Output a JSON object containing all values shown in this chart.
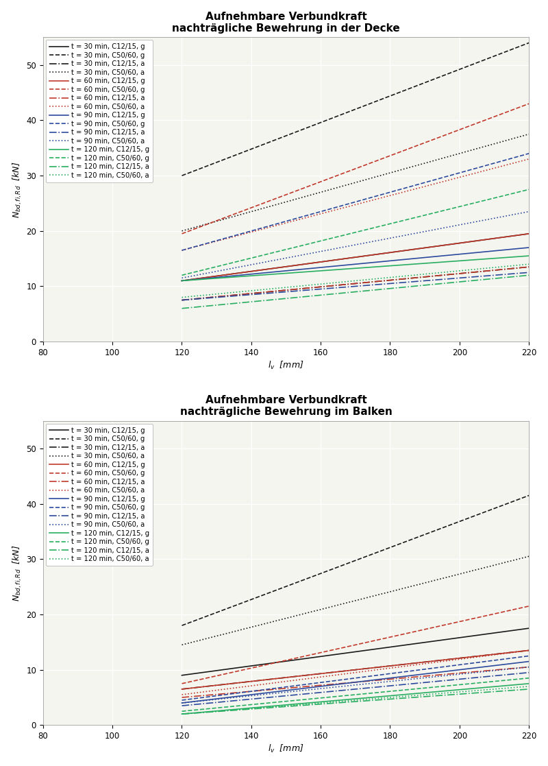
{
  "title1": "Aufnehmbare Verbundkraft\nnachträgliche Bewehrung in der Decke",
  "title2": "Aufnehmbare Verbundkraft\nnachträgliche Bewehrung im Balken",
  "xlabel": "$l_v$  [mm]",
  "ylabel1": "$N_{bd,fi,Rd}$  [kN]",
  "ylabel2": "$N_{bd,fi,Rd}$  [kN]",
  "xlim": [
    80,
    220
  ],
  "ylim": [
    0,
    55
  ],
  "yticks": [
    0,
    10,
    20,
    30,
    40,
    50
  ],
  "xticks": [
    80,
    100,
    120,
    140,
    160,
    180,
    200,
    220
  ],
  "x_start": 120,
  "x_end": 220,
  "legend_entries": [
    {
      "label": "t = 30 min, C12/15, g",
      "color": "#1a1a1a",
      "ls": "solid"
    },
    {
      "label": "t = 30 min, C50/60, g",
      "color": "#1a1a1a",
      "ls": "dashed"
    },
    {
      "label": "t = 30 min, C12/15, a",
      "color": "#1a1a1a",
      "ls": "dashdot"
    },
    {
      "label": "t = 30 min, C50/60, a",
      "color": "#1a1a1a",
      "ls": "dotted"
    },
    {
      "label": "t = 60 min, C12/15, g",
      "color": "#c0392b",
      "ls": "solid"
    },
    {
      "label": "t = 60 min, C50/60, g",
      "color": "#c0392b",
      "ls": "dashed"
    },
    {
      "label": "t = 60 min, C12/15, a",
      "color": "#c0392b",
      "ls": "dashdot"
    },
    {
      "label": "t = 60 min, C50/60, a",
      "color": "#c0392b",
      "ls": "dotted"
    },
    {
      "label": "t = 90 min, C12/15, g",
      "color": "#2c4a9c",
      "ls": "solid"
    },
    {
      "label": "t = 90 min, C50/60, g",
      "color": "#2c4a9c",
      "ls": "dashed"
    },
    {
      "label": "t = 90 min, C12/15, a",
      "color": "#2c4a9c",
      "ls": "dashdot"
    },
    {
      "label": "t = 90 min, C50/60, a",
      "color": "#2c4a9c",
      "ls": "dotted"
    },
    {
      "label": "t = 120 min, C12/15, g",
      "color": "#27ae60",
      "ls": "solid"
    },
    {
      "label": "t = 120 min, C50/60, g",
      "color": "#27ae60",
      "ls": "dashed"
    },
    {
      "label": "t = 120 min, C12/15, a",
      "color": "#27ae60",
      "ls": "dashdot"
    },
    {
      "label": "t = 120 min, C50/60, a",
      "color": "#27ae60",
      "ls": "dotted"
    }
  ],
  "decke_lines": [
    {
      "color": "#1a1a1a",
      "ls": "solid",
      "y120": 11.0,
      "y220": 19.5
    },
    {
      "color": "#1a1a1a",
      "ls": "dashed",
      "y120": 30.0,
      "y220": 54.0
    },
    {
      "color": "#1a1a1a",
      "ls": "dashdot",
      "y120": 7.5,
      "y220": 13.5
    },
    {
      "color": "#1a1a1a",
      "ls": "dotted",
      "y120": 20.0,
      "y220": 37.5
    },
    {
      "color": "#c0392b",
      "ls": "solid",
      "y120": 11.0,
      "y220": 19.5
    },
    {
      "color": "#c0392b",
      "ls": "dashed",
      "y120": 19.5,
      "y220": 43.0
    },
    {
      "color": "#c0392b",
      "ls": "dashdot",
      "y120": 7.5,
      "y220": 13.5
    },
    {
      "color": "#c0392b",
      "ls": "dotted",
      "y120": 16.5,
      "y220": 33.0
    },
    {
      "color": "#2c4a9c",
      "ls": "solid",
      "y120": 11.0,
      "y220": 17.0
    },
    {
      "color": "#2c4a9c",
      "ls": "dashed",
      "y120": 16.5,
      "y220": 34.0
    },
    {
      "color": "#2c4a9c",
      "ls": "dashdot",
      "y120": 7.5,
      "y220": 12.5
    },
    {
      "color": "#2c4a9c",
      "ls": "dotted",
      "y120": 11.5,
      "y220": 23.5
    },
    {
      "color": "#27ae60",
      "ls": "solid",
      "y120": 11.0,
      "y220": 15.5
    },
    {
      "color": "#27ae60",
      "ls": "dashed",
      "y120": 12.0,
      "y220": 27.5
    },
    {
      "color": "#27ae60",
      "ls": "dashdot",
      "y120": 6.0,
      "y220": 12.0
    },
    {
      "color": "#27ae60",
      "ls": "dotted",
      "y120": 8.0,
      "y220": 14.0
    }
  ],
  "balken_lines": [
    {
      "color": "#1a1a1a",
      "ls": "solid",
      "y120": 9.0,
      "y220": 17.5
    },
    {
      "color": "#1a1a1a",
      "ls": "dashed",
      "y120": 18.0,
      "y220": 41.5
    },
    {
      "color": "#1a1a1a",
      "ls": "dashdot",
      "y120": 6.5,
      "y220": 13.5
    },
    {
      "color": "#1a1a1a",
      "ls": "dotted",
      "y120": 14.5,
      "y220": 30.5
    },
    {
      "color": "#c0392b",
      "ls": "solid",
      "y120": 6.5,
      "y220": 13.5
    },
    {
      "color": "#c0392b",
      "ls": "dashed",
      "y120": 7.5,
      "y220": 21.5
    },
    {
      "color": "#c0392b",
      "ls": "dashdot",
      "y120": 5.0,
      "y220": 10.5
    },
    {
      "color": "#c0392b",
      "ls": "dotted",
      "y120": 5.5,
      "y220": 13.5
    },
    {
      "color": "#2c4a9c",
      "ls": "solid",
      "y120": 4.0,
      "y220": 11.5
    },
    {
      "color": "#2c4a9c",
      "ls": "dashed",
      "y120": 4.5,
      "y220": 12.5
    },
    {
      "color": "#2c4a9c",
      "ls": "dashdot",
      "y120": 3.5,
      "y220": 9.5
    },
    {
      "color": "#2c4a9c",
      "ls": "dotted",
      "y120": 4.0,
      "y220": 10.5
    },
    {
      "color": "#27ae60",
      "ls": "solid",
      "y120": 2.0,
      "y220": 7.5
    },
    {
      "color": "#27ae60",
      "ls": "dashed",
      "y120": 2.5,
      "y220": 8.5
    },
    {
      "color": "#27ae60",
      "ls": "dashdot",
      "y120": 2.0,
      "y220": 6.5
    },
    {
      "color": "#27ae60",
      "ls": "dotted",
      "y120": 2.0,
      "y220": 7.0
    }
  ],
  "lw": 1.2,
  "legend_fontsize": 7.2,
  "title_fontsize": 11,
  "axis_fontsize": 9,
  "tick_fontsize": 8.5,
  "bg_color": "#f5f5f0"
}
